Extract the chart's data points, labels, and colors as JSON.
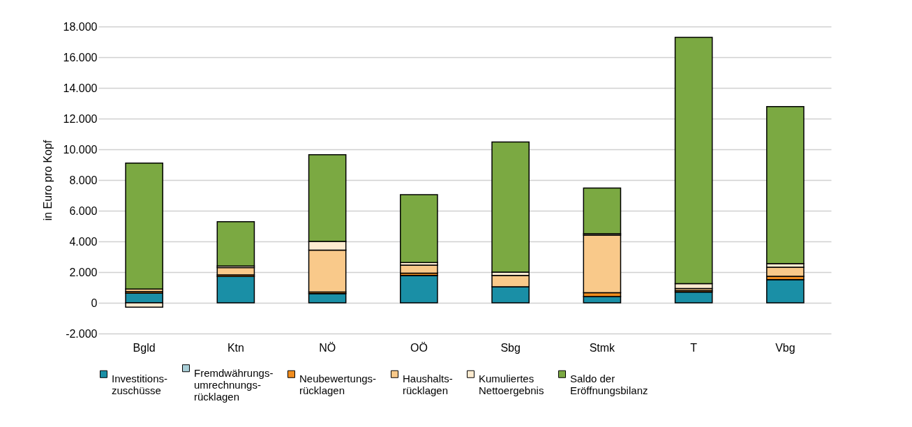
{
  "chart_data": {
    "type": "bar",
    "stacked": true,
    "ylabel": "in Euro pro Kopf",
    "categories": [
      "Bgld",
      "Ktn",
      "NÖ",
      "OÖ",
      "Sbg",
      "Stmk",
      "T",
      "Vbg"
    ],
    "series": [
      {
        "name": "Investitions-\nzuschüsse",
        "color": "#1a8fa6",
        "values": [
          620,
          1720,
          600,
          1780,
          1050,
          410,
          700,
          1510
        ]
      },
      {
        "name": "Fremdwährungs-\numrechnungs-\nrücklagen",
        "color": "#a9cfd8",
        "values": [
          0,
          0,
          0,
          0,
          0,
          0,
          0,
          0
        ]
      },
      {
        "name": "Neubewertungs-\nrücklagen",
        "color": "#f08c1e",
        "values": [
          110,
          100,
          100,
          150,
          0,
          250,
          100,
          220
        ]
      },
      {
        "name": "Haushalts-\nrücklagen",
        "color": "#f9c98a",
        "values": [
          170,
          480,
          2730,
          530,
          730,
          3750,
          130,
          590
        ]
      },
      {
        "name": "Kumuliertes\nNettoergebnis",
        "color": "#fdebd0",
        "values": [
          -280,
          100,
          570,
          170,
          220,
          90,
          320,
          240
        ]
      },
      {
        "name": "Saldo der\nEröffnungsbilanz",
        "color": "#7ba942",
        "values": [
          8200,
          2880,
          5650,
          4410,
          8480,
          2980,
          16050,
          10220
        ]
      }
    ],
    "ylim": [
      -2000,
      18000
    ],
    "yticks": [
      {
        "value": -2000,
        "label": "-2.000"
      },
      0,
      {
        "value": 2000,
        "label": "2.000"
      },
      {
        "value": 4000,
        "label": "4.000"
      },
      {
        "value": 6000,
        "label": "6.000"
      },
      {
        "value": 8000,
        "label": "8.000"
      },
      {
        "value": 10000,
        "label": "10.000"
      },
      {
        "value": 12000,
        "label": "12.000"
      },
      {
        "value": 14000,
        "label": "14.000"
      },
      {
        "value": 16000,
        "label": "16.000"
      },
      {
        "value": 18000,
        "label": "18.000"
      }
    ],
    "grid": "y",
    "legend": "bottom"
  }
}
